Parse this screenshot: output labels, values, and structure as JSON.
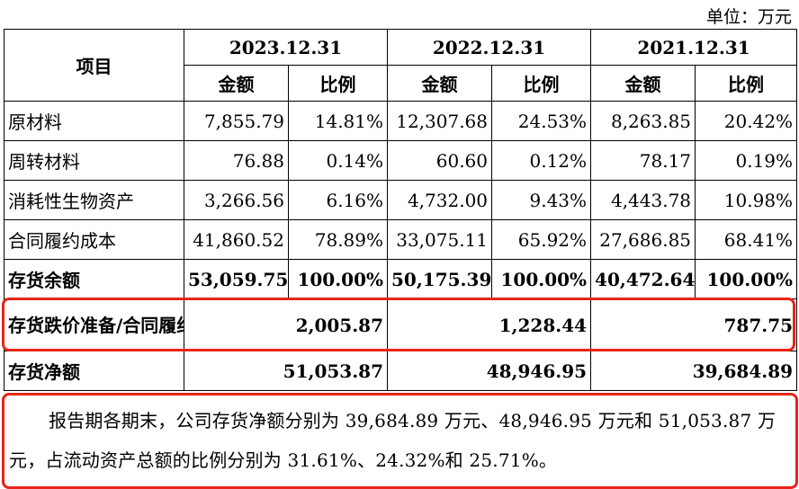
{
  "unit_label": "单位：万元",
  "table": {
    "item_header": "项目",
    "periods": [
      "2023.12.31",
      "2022.12.31",
      "2021.12.31"
    ],
    "amount_header": "金额",
    "ratio_header": "比例",
    "rows": [
      {
        "label": "原材料",
        "values": [
          "7,855.79",
          "14.81%",
          "12,307.68",
          "24.53%",
          "8,263.85",
          "20.42%"
        ]
      },
      {
        "label": "周转材料",
        "values": [
          "76.88",
          "0.14%",
          "60.60",
          "0.12%",
          "78.17",
          "0.19%"
        ]
      },
      {
        "label": "消耗性生物资产",
        "values": [
          "3,266.56",
          "6.16%",
          "4,732.00",
          "9.43%",
          "4,443.78",
          "10.98%"
        ]
      },
      {
        "label": "合同履约成本",
        "values": [
          "41,860.52",
          "78.89%",
          "33,075.11",
          "65.92%",
          "27,686.85",
          "68.41%"
        ]
      }
    ],
    "total_row": {
      "label": "存货余额",
      "values": [
        "53,059.75",
        "100.00%",
        "50,175.39",
        "100.00%",
        "40,472.64",
        "100.00%"
      ]
    },
    "reserve_row": {
      "label": "存货跌价准备/合同履约成本减值准备",
      "values": [
        "2,005.87",
        "1,228.44",
        "787.75"
      ]
    },
    "net_row": {
      "label": "存货净额",
      "values": [
        "51,053.87",
        "48,946.95",
        "39,684.89"
      ]
    }
  },
  "paragraph": "报告期各期末，公司存货净额分别为 39,684.89 万元、48,946.95 万元和 51,053.87 万元，占流动资产总额的比例分别为 31.61%、24.32%和 25.71%。",
  "highlight_color": "#e8241a"
}
